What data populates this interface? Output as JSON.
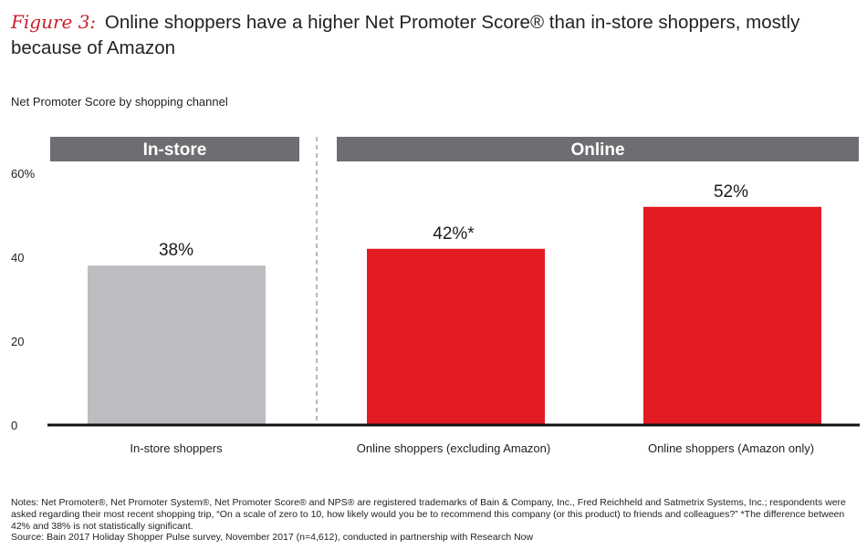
{
  "title": {
    "figure_label": "Figure 3:",
    "text": "Online shoppers have a higher Net Promoter Score® than in-store shoppers, mostly because of Amazon"
  },
  "subtitle": "Net Promoter Score by shopping channel",
  "chart_data": {
    "type": "bar",
    "groups": [
      {
        "name": "In-store",
        "categories": [
          "In-store shoppers"
        ]
      },
      {
        "name": "Online",
        "categories": [
          "Online shoppers (excluding Amazon)",
          "Online shoppers (Amazon only)"
        ]
      }
    ],
    "categories": [
      "In-store shoppers",
      "Online shoppers (excluding Amazon)",
      "Online shoppers (Amazon only)"
    ],
    "values": [
      38,
      42,
      52
    ],
    "data_labels": [
      "38%",
      "42%*",
      "52%"
    ],
    "colors": [
      "#bcbdc0",
      "#e31b23",
      "#e31b23"
    ],
    "ylim": [
      0,
      60
    ],
    "yticks": [
      0,
      20,
      40,
      60
    ],
    "ytick_labels": [
      "0",
      "20",
      "40",
      "60%"
    ],
    "xlabel": "",
    "ylabel": "",
    "grid": false,
    "group_header_color": "#6d6e71"
  },
  "notes": [
    "Notes: Net Promoter®, Net Promoter System®, Net Promoter Score® and NPS® are registered trademarks of Bain & Company, Inc., Fred Reichheld and Satmetrix Systems, Inc.; respondents were asked regarding their most recent shopping trip, “On a scale of zero to 10, how likely would you be to recommend this company (or this product) to friends and colleagues?” *The difference between 42% and 38% is not statistically significant.",
    "Source: Bain 2017 Holiday Shopper Pulse survey, November 2017 (n=4,612), conducted in partnership with Research Now"
  ]
}
